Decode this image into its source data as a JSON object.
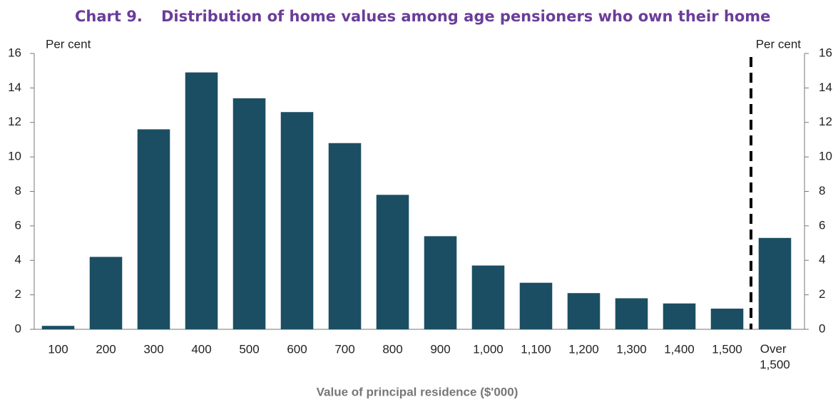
{
  "chart_data": {
    "type": "bar",
    "title": "Chart 9.",
    "subtitle": "Distribution of home values among age pensioners who own their home",
    "y_label": "Per cent",
    "y2_label": "Per cent",
    "x_label": "Value of principal residence ($'000)",
    "categories": [
      "100",
      "200",
      "300",
      "400",
      "500",
      "600",
      "700",
      "800",
      "900",
      "1,000",
      "1,100",
      "1,200",
      "1,300",
      "1,400",
      "1,500",
      "Over 1,500"
    ],
    "values": [
      0.2,
      4.2,
      11.6,
      14.9,
      13.4,
      12.6,
      10.8,
      7.8,
      5.4,
      3.7,
      2.7,
      2.1,
      1.8,
      1.5,
      1.2,
      5.3
    ],
    "color": "#1b4e62",
    "ylim": [
      0,
      16
    ],
    "yticks": [
      0,
      2,
      4,
      6,
      8,
      10,
      12,
      14,
      16
    ],
    "y2lim": [
      0,
      16
    ],
    "y2ticks": [
      0,
      2,
      4,
      6,
      8,
      10,
      12,
      14,
      16
    ],
    "grid": false
  }
}
